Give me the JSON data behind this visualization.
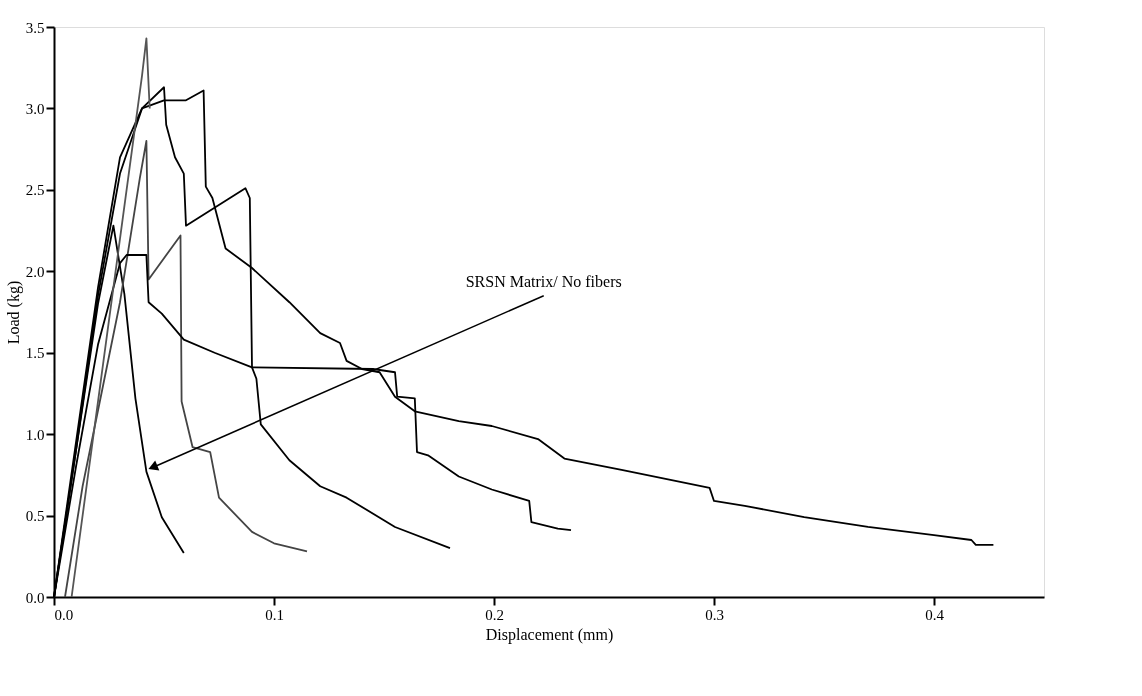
{
  "chart_data": {
    "type": "line",
    "xlabel": "Displacement (mm)",
    "ylabel": "Load (kg)",
    "xlim": [
      0,
      0.45
    ],
    "ylim": [
      0,
      3.5
    ],
    "xticks": [
      {
        "value": 0,
        "label": "0.0"
      },
      0.1,
      0.2,
      0.3,
      0.4
    ],
    "yticks": [
      {
        "value": 0,
        "label": "0.0"
      },
      0.5,
      {
        "value": 1,
        "label": "1.0"
      },
      1.5,
      {
        "value": 2,
        "label": "2.0"
      },
      2.5,
      {
        "value": 3,
        "label": "3.0"
      },
      3.5
    ],
    "grid": false,
    "marker": "none",
    "line_style": "solid",
    "series": [
      {
        "color": "#000000",
        "x": [
          0,
          0.01,
          0.02,
          0.027,
          0.032,
          0.037,
          0.042,
          0.049,
          0.059
        ],
        "values": [
          0,
          0.9,
          1.8,
          2.28,
          1.86,
          1.22,
          0.77,
          0.49,
          0.27
        ]
      },
      {
        "color": "#444444",
        "x": [
          0.005,
          0.013,
          0.03,
          0.039,
          0.042,
          0.043,
          0.0575,
          0.058,
          0.063,
          0.071,
          0.075,
          0.09,
          0.1,
          0.115
        ],
        "values": [
          0,
          0.68,
          1.81,
          2.57,
          2.8,
          1.95,
          2.22,
          1.2,
          0.92,
          0.89,
          0.61,
          0.4,
          0.33,
          0.28
        ]
      },
      {
        "color": "#000000",
        "x": [
          0,
          0.01,
          0.02,
          0.03,
          0.033,
          0.042,
          0.043,
          0.049,
          0.059,
          0.073,
          0.09,
          0.092,
          0.094,
          0.107,
          0.121,
          0.133,
          0.155,
          0.18
        ],
        "values": [
          0,
          0.8,
          1.55,
          2.05,
          2.1,
          2.1,
          1.81,
          1.74,
          1.58,
          1.5,
          1.41,
          1.34,
          1.06,
          0.84,
          0.68,
          0.61,
          0.43,
          0.3
        ]
      },
      {
        "color": "#000000",
        "x": [
          0,
          0.01,
          0.02,
          0.03,
          0.04,
          0.05,
          0.06,
          0.068,
          0.069,
          0.072,
          0.078,
          0.09,
          0.107,
          0.121,
          0.13,
          0.133,
          0.14,
          0.148,
          0.155,
          0.164,
          0.184,
          0.199,
          0.22,
          0.232,
          0.258,
          0.298,
          0.3,
          0.314,
          0.341,
          0.37,
          0.4,
          0.417,
          0.419,
          0.427
        ],
        "values": [
          0,
          0.95,
          1.9,
          2.7,
          3.0,
          3.05,
          3.05,
          3.11,
          2.52,
          2.45,
          2.14,
          2.02,
          1.81,
          1.62,
          1.56,
          1.45,
          1.4,
          1.38,
          1.23,
          1.14,
          1.08,
          1.05,
          0.97,
          0.85,
          0.78,
          0.67,
          0.59,
          0.56,
          0.49,
          0.43,
          0.38,
          0.35,
          0.32,
          0.32
        ]
      },
      {
        "color": "#000000",
        "x": [
          0,
          0.01,
          0.02,
          0.03,
          0.04,
          0.05,
          0.051,
          0.055,
          0.059,
          0.06,
          0.087,
          0.089,
          0.09,
          0.145,
          0.155,
          0.156,
          0.164,
          0.165,
          0.17,
          0.184,
          0.199,
          0.216,
          0.217,
          0.229,
          0.235
        ],
        "values": [
          0,
          0.9,
          1.85,
          2.6,
          3.0,
          3.13,
          2.9,
          2.7,
          2.6,
          2.28,
          2.51,
          2.45,
          1.41,
          1.4,
          1.38,
          1.23,
          1.22,
          0.89,
          0.87,
          0.74,
          0.66,
          0.59,
          0.46,
          0.42,
          0.41
        ]
      },
      {
        "color": "#555555",
        "x": [
          0.008,
          0.02,
          0.03,
          0.04,
          0.042,
          0.0435
        ],
        "values": [
          0,
          1.2,
          2.2,
          3.2,
          3.43,
          3.0
        ]
      }
    ],
    "annotations": [
      {
        "text": "SRSN Matrix/ No fibers",
        "x": 0.0456,
        "y": 0.8
      }
    ]
  }
}
